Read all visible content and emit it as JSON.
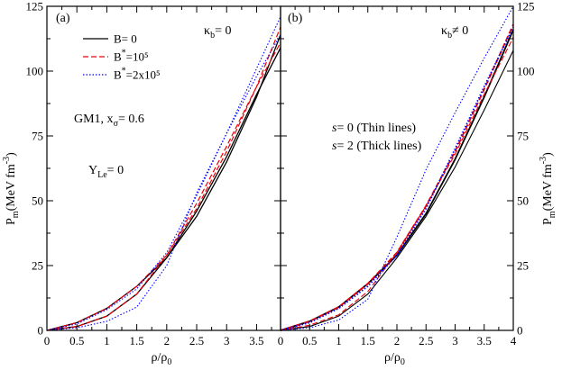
{
  "chart_data": [
    {
      "type": "line",
      "panel_label": "(a)",
      "kappa_label": {
        "main": "κ",
        "sub": "b",
        "rest": "= 0"
      },
      "xlabel": {
        "main": "ρ/ρ",
        "sub": "0"
      },
      "ylabel": {
        "main": "P",
        "sub": "m",
        "mid": "(MeV fm",
        "sup": "-3",
        "end": ")"
      },
      "xlim": [
        0,
        3.9
      ],
      "ylim": [
        0,
        125
      ],
      "xticks": [
        0,
        0.5,
        1,
        1.5,
        2,
        2.5,
        3,
        3.5
      ],
      "xtick_labels": [
        "0",
        "0.5",
        "1",
        "1.5",
        "2",
        "2.5",
        "3",
        "3.5"
      ],
      "yticks": [
        0,
        25,
        50,
        75,
        100,
        125
      ],
      "ytick_labels": [
        "0",
        "25",
        "50",
        "75",
        "100",
        "125"
      ],
      "annotations": [
        {
          "id": "gm1",
          "text": "GM1,  x",
          "sub": "σ",
          "rest": "= 0.6"
        },
        {
          "id": "yle",
          "text": "Y",
          "sub": "Le",
          "rest": "= 0"
        }
      ],
      "legend": [
        {
          "text": "B= 0",
          "sup": "",
          "rest": "",
          "color": "#000000",
          "dash": ""
        },
        {
          "text": "B",
          "sup": "*",
          "rest": "=10⁵",
          "color": "#e8000b",
          "dash": "6,3"
        },
        {
          "text": "B",
          "sup": "*",
          "rest": "=2x10⁵",
          "color": "#0000ff",
          "dash": "1.5,2"
        }
      ],
      "series": [
        {
          "color": "#000000",
          "dash": "",
          "width": 1.3,
          "x": [
            0,
            0.5,
            1.0,
            1.5,
            2.0,
            2.5,
            3.0,
            3.5,
            3.9
          ],
          "y": [
            0,
            1.5,
            5.5,
            14,
            28,
            46,
            67,
            91,
            109
          ]
        },
        {
          "color": "#000000",
          "dash": "",
          "width": 1.3,
          "x": [
            0,
            0.5,
            1.0,
            1.5,
            2.0,
            2.5,
            3.0,
            3.5,
            3.9
          ],
          "y": [
            0,
            3,
            8.5,
            17,
            28,
            44,
            65,
            90,
            114
          ]
        },
        {
          "color": "#e8000b",
          "dash": "6,3",
          "width": 1.2,
          "x": [
            0,
            0.5,
            1.0,
            1.5,
            2.0,
            2.5,
            3.0,
            3.5,
            3.9
          ],
          "y": [
            0,
            1.5,
            5.5,
            14,
            29,
            49,
            71,
            94,
            111
          ]
        },
        {
          "color": "#e8000b",
          "dash": "6,3",
          "width": 1.2,
          "x": [
            0,
            0.5,
            1.0,
            1.5,
            2.0,
            2.5,
            3.0,
            3.5,
            3.9
          ],
          "y": [
            0,
            3,
            8.5,
            17,
            29,
            47,
            69,
            94,
            117
          ]
        },
        {
          "color": "#0000ff",
          "dash": "1.5,2",
          "width": 1.1,
          "x": [
            0,
            0.5,
            1.0,
            1.5,
            2.0,
            2.5,
            3.0,
            3.5,
            3.9
          ],
          "y": [
            0,
            1,
            3.5,
            9,
            25,
            53,
            76,
            98,
            114
          ]
        },
        {
          "color": "#0000ff",
          "dash": "1.5,2",
          "width": 1.1,
          "x": [
            0,
            0.5,
            1.0,
            1.5,
            2.0,
            2.5,
            3.0,
            3.5,
            3.9
          ],
          "y": [
            0,
            2.5,
            8,
            16,
            30,
            52,
            76,
            101,
            121
          ]
        }
      ]
    },
    {
      "type": "line",
      "panel_label": "(b)",
      "kappa_label": {
        "main": "κ",
        "sub": "b",
        "rest": "≠ 0"
      },
      "xlabel": {
        "main": "ρ/ρ",
        "sub": "0"
      },
      "ylabel": {
        "main": "P",
        "sub": "m",
        "mid": "(MeV fm",
        "sup": "-3",
        "end": ")"
      },
      "xlim": [
        0,
        4
      ],
      "ylim": [
        0,
        125
      ],
      "xticks": [
        0,
        0.5,
        1,
        1.5,
        2,
        2.5,
        3,
        3.5,
        4
      ],
      "xtick_labels": [
        "0",
        "0.5",
        "1",
        "1.5",
        "2",
        "2.5",
        "3",
        "3.5",
        "4"
      ],
      "yticks": [
        0,
        25,
        50,
        75,
        100,
        125
      ],
      "ytick_labels": [
        "0",
        "25",
        "50",
        "75",
        "100",
        "125"
      ],
      "annotations": [
        {
          "id": "s0",
          "text": "s",
          "sub": "",
          "rest": "= 0 (Thin lines)"
        },
        {
          "id": "s2",
          "text": "s",
          "sub": "",
          "rest": "= 2 (Thick lines)"
        }
      ],
      "legend": [],
      "series": [
        {
          "color": "#000000",
          "dash": "",
          "width": 1.1,
          "x": [
            0,
            0.5,
            1.0,
            1.5,
            2.0,
            2.5,
            3.0,
            3.5,
            4.0
          ],
          "y": [
            0,
            1.5,
            5.5,
            14,
            28,
            44,
            63,
            85,
            108
          ]
        },
        {
          "color": "#000000",
          "dash": "",
          "width": 1.8,
          "x": [
            0,
            0.5,
            1.0,
            1.5,
            2.0,
            2.5,
            3.0,
            3.5,
            4.0
          ],
          "y": [
            0,
            3.5,
            9,
            18,
            29,
            45,
            66,
            90,
            116
          ]
        },
        {
          "color": "#e8000b",
          "dash": "6,3",
          "width": 1.1,
          "x": [
            0,
            0.5,
            1.0,
            1.5,
            2.0,
            2.5,
            3.0,
            3.5,
            4.0
          ],
          "y": [
            0,
            2,
            6,
            15,
            30,
            48,
            68,
            91,
            113
          ]
        },
        {
          "color": "#e8000b",
          "dash": "6,3",
          "width": 1.8,
          "x": [
            0,
            0.5,
            1.0,
            1.5,
            2.0,
            2.5,
            3.0,
            3.5,
            4.0
          ],
          "y": [
            0,
            3.5,
            9,
            18,
            30,
            48,
            69,
            93,
            118
          ]
        },
        {
          "color": "#0000ff",
          "dash": "1.5,2",
          "width": 1.1,
          "x": [
            0,
            0.5,
            1.0,
            1.5,
            2.0,
            2.5,
            3.0,
            3.5,
            4.0
          ],
          "y": [
            0,
            1,
            4,
            12,
            36,
            62,
            84,
            105,
            125
          ]
        },
        {
          "color": "#0000ff",
          "dash": "1.5,2",
          "width": 1.8,
          "x": [
            0,
            0.5,
            1.0,
            1.5,
            2.0,
            2.5,
            3.0,
            3.5,
            4.0
          ],
          "y": [
            0,
            3,
            8.5,
            17,
            29,
            47,
            70,
            94,
            117
          ]
        }
      ]
    }
  ]
}
